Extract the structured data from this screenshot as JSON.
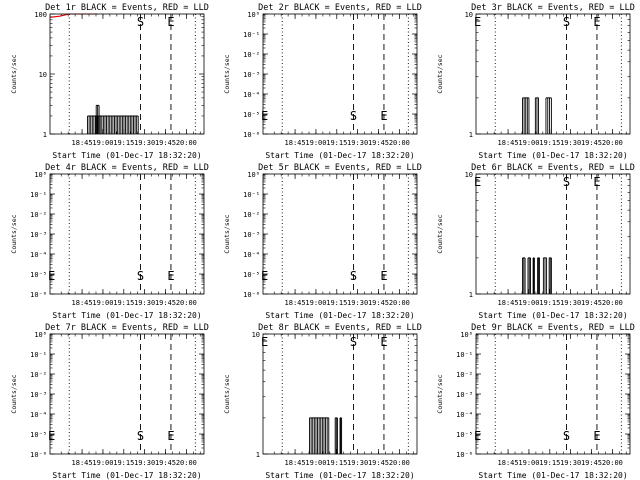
{
  "colors": {
    "events": "#000000",
    "lld": "#dd0000",
    "background": "#ffffff"
  },
  "chart_data": [
    {
      "type": "bar",
      "title": "Det 1r BLACK = Events, RED = LLD",
      "xlabel": "Start Time (01-Dec-17 18:32:20)",
      "ylabel": "Counts/sec",
      "log_y": true,
      "y_ticks": [
        "1",
        "10",
        "100"
      ],
      "y_tick_values": [
        1,
        10,
        100
      ],
      "ylim": [
        1,
        100
      ],
      "x_tick_labels": [
        "18:45",
        "19:00",
        "19:15",
        "19:30",
        "19:45",
        "20:00"
      ],
      "x_tick_values": [
        -0.2,
        0.45,
        1.1,
        1.75,
        2.4,
        3.05
      ],
      "xlim": [
        -1.2,
        3.6
      ],
      "dotted_lines": [
        -0.6,
        3.33
      ],
      "dashed_lines": [
        1.62,
        2.57
      ],
      "markers": [
        {
          "label": "S",
          "x": 1.62
        },
        {
          "label": "E",
          "x": 2.57
        }
      ],
      "events": [
        {
          "x": [
            -0.03,
            1.55
          ],
          "y": 2
        },
        {
          "x": [
            0.24,
            0.33
          ],
          "y": 3
        }
      ],
      "lld_series": [
        {
          "x": -1.2,
          "y": 88
        },
        {
          "x": -0.9,
          "y": 92
        },
        {
          "x": -0.6,
          "y": 100
        },
        {
          "x": -0.3,
          "y": 100
        },
        {
          "x": 0.0,
          "y": 100
        },
        {
          "x": 0.3,
          "y": 100
        }
      ]
    },
    {
      "type": "bar",
      "title": "Det 2r BLACK = Events, RED = LLD",
      "xlabel": "Start Time (01-Dec-17 18:32:20)",
      "ylabel": "Counts/sec",
      "log_y": true,
      "y_ticks": [
        "10⁰",
        "10⁻¹",
        "10⁻²",
        "10⁻³",
        "10⁻⁴",
        "10⁻⁵",
        "10⁻⁶"
      ],
      "y_tick_values": [
        1,
        0.1,
        0.01,
        0.001,
        0.0001,
        1e-05,
        1e-06
      ],
      "ylim": [
        1,
        1e-06
      ],
      "x_tick_labels": [
        "18:45",
        "19:00",
        "19:15",
        "19:30",
        "19:45",
        "20:00"
      ],
      "x_tick_values": [
        -0.2,
        0.45,
        1.1,
        1.75,
        2.4,
        3.05
      ],
      "xlim": [
        -1.2,
        3.6
      ],
      "dotted_lines": [
        -0.6,
        3.33
      ],
      "dashed_lines": [
        1.62,
        2.57
      ],
      "markers": [
        {
          "label": "E",
          "x": -1.15
        },
        {
          "label": "S",
          "x": 1.62
        },
        {
          "label": "E",
          "x": 2.57
        }
      ],
      "events": []
    },
    {
      "type": "bar",
      "title": "Det 3r BLACK = Events, RED = LLD",
      "xlabel": "Start Time (01-Dec-17 18:32:20)",
      "ylabel": "Counts/sec",
      "log_y": true,
      "y_ticks": [
        "1",
        "10"
      ],
      "y_tick_values": [
        1,
        10
      ],
      "ylim": [
        1,
        10
      ],
      "x_tick_labels": [
        "18:45",
        "19:00",
        "19:15",
        "19:30",
        "19:45",
        "20:00"
      ],
      "x_tick_values": [
        -0.2,
        0.45,
        1.1,
        1.75,
        2.4,
        3.05
      ],
      "xlim": [
        -1.2,
        3.6
      ],
      "dotted_lines": [
        -0.6,
        3.33
      ],
      "dashed_lines": [
        1.62,
        2.57
      ],
      "markers": [
        {
          "label": "E",
          "x": -1.15
        },
        {
          "label": "S",
          "x": 1.62
        },
        {
          "label": "E",
          "x": 2.57
        }
      ],
      "events": [
        {
          "x": [
            0.25,
            0.45
          ],
          "y": 2
        },
        {
          "x": [
            0.65,
            0.75
          ],
          "y": 2
        },
        {
          "x": [
            0.98,
            1.15
          ],
          "y": 2
        }
      ]
    },
    {
      "type": "bar",
      "title": "Det 4r BLACK = Events, RED = LLD",
      "xlabel": "Start Time (01-Dec-17 18:32:20)",
      "ylabel": "Counts/sec",
      "log_y": true,
      "y_ticks": [
        "10⁰",
        "10⁻¹",
        "10⁻²",
        "10⁻³",
        "10⁻⁴",
        "10⁻⁵",
        "10⁻⁶"
      ],
      "y_tick_values": [
        1,
        0.1,
        0.01,
        0.001,
        0.0001,
        1e-05,
        1e-06
      ],
      "ylim": [
        1,
        1e-06
      ],
      "x_tick_labels": [
        "18:45",
        "19:00",
        "19:15",
        "19:30",
        "19:45",
        "20:00"
      ],
      "x_tick_values": [
        -0.2,
        0.45,
        1.1,
        1.75,
        2.4,
        3.05
      ],
      "xlim": [
        -1.2,
        3.6
      ],
      "dotted_lines": [
        -0.6,
        3.33
      ],
      "dashed_lines": [
        1.62,
        2.57
      ],
      "markers": [
        {
          "label": "E",
          "x": -1.15
        },
        {
          "label": "S",
          "x": 1.62
        },
        {
          "label": "E",
          "x": 2.57
        }
      ],
      "events": []
    },
    {
      "type": "bar",
      "title": "Det 5r BLACK = Events, RED = LLD",
      "xlabel": "Start Time (01-Dec-17 18:32:20)",
      "ylabel": "Counts/sec",
      "log_y": true,
      "y_ticks": [
        "10⁰",
        "10⁻¹",
        "10⁻²",
        "10⁻³",
        "10⁻⁴",
        "10⁻⁵",
        "10⁻⁶"
      ],
      "y_tick_values": [
        1,
        0.1,
        0.01,
        0.001,
        0.0001,
        1e-05,
        1e-06
      ],
      "ylim": [
        1,
        1e-06
      ],
      "x_tick_labels": [
        "18:45",
        "19:00",
        "19:15",
        "19:30",
        "19:45",
        "20:00"
      ],
      "x_tick_values": [
        -0.2,
        0.45,
        1.1,
        1.75,
        2.4,
        3.05
      ],
      "xlim": [
        -1.2,
        3.6
      ],
      "dotted_lines": [
        -0.6,
        3.33
      ],
      "dashed_lines": [
        1.62,
        2.57
      ],
      "markers": [
        {
          "label": "E",
          "x": -1.15
        },
        {
          "label": "S",
          "x": 1.62
        },
        {
          "label": "E",
          "x": 2.57
        }
      ],
      "events": []
    },
    {
      "type": "bar",
      "title": "Det 6r BLACK = Events, RED = LLD",
      "xlabel": "Start Time (01-Dec-17 18:32:20)",
      "ylabel": "Counts/sec",
      "log_y": true,
      "y_ticks": [
        "1",
        "10"
      ],
      "y_tick_values": [
        1,
        10
      ],
      "ylim": [
        1,
        10
      ],
      "x_tick_labels": [
        "18:45",
        "19:00",
        "19:15",
        "19:30",
        "19:45",
        "20:00"
      ],
      "x_tick_values": [
        -0.2,
        0.45,
        1.1,
        1.75,
        2.4,
        3.05
      ],
      "xlim": [
        -1.2,
        3.6
      ],
      "dotted_lines": [
        -0.6,
        3.33
      ],
      "dashed_lines": [
        1.62,
        2.57
      ],
      "markers": [
        {
          "label": "E",
          "x": -1.15
        },
        {
          "label": "S",
          "x": 1.62
        },
        {
          "label": "E",
          "x": 2.57
        }
      ],
      "events": [
        {
          "x": [
            0.25,
            0.33
          ],
          "y": 2
        },
        {
          "x": [
            0.42,
            0.5
          ],
          "y": 2
        },
        {
          "x": [
            0.58,
            0.62
          ],
          "y": 2
        },
        {
          "x": [
            0.72,
            0.78
          ],
          "y": 2
        },
        {
          "x": [
            0.9,
            1.0
          ],
          "y": 2
        },
        {
          "x": [
            1.08,
            1.15
          ],
          "y": 2
        }
      ]
    },
    {
      "type": "bar",
      "title": "Det 7r BLACK = Events, RED = LLD",
      "xlabel": "Start Time (01-Dec-17 18:32:20)",
      "ylabel": "Counts/sec",
      "log_y": true,
      "y_ticks": [
        "10⁰",
        "10⁻¹",
        "10⁻²",
        "10⁻³",
        "10⁻⁴",
        "10⁻⁵",
        "10⁻⁶"
      ],
      "y_tick_values": [
        1,
        0.1,
        0.01,
        0.001,
        0.0001,
        1e-05,
        1e-06
      ],
      "ylim": [
        1,
        1e-06
      ],
      "x_tick_labels": [
        "18:45",
        "19:00",
        "19:15",
        "19:30",
        "19:45",
        "20:00"
      ],
      "x_tick_values": [
        -0.2,
        0.45,
        1.1,
        1.75,
        2.4,
        3.05
      ],
      "xlim": [
        -1.2,
        3.6
      ],
      "dotted_lines": [
        -0.6,
        3.33
      ],
      "dashed_lines": [
        1.62,
        2.57
      ],
      "markers": [
        {
          "label": "E",
          "x": -1.15
        },
        {
          "label": "S",
          "x": 1.62
        },
        {
          "label": "E",
          "x": 2.57
        }
      ],
      "events": []
    },
    {
      "type": "bar",
      "title": "Det 8r BLACK = Events, RED = LLD",
      "xlabel": "Start Time (01-Dec-17 18:32:20)",
      "ylabel": "Counts/sec",
      "log_y": true,
      "y_ticks": [
        "1",
        "10"
      ],
      "y_tick_values": [
        1,
        10
      ],
      "ylim": [
        1,
        10
      ],
      "x_tick_labels": [
        "18:45",
        "19:00",
        "19:15",
        "19:30",
        "19:45",
        "20:00"
      ],
      "x_tick_values": [
        -0.2,
        0.45,
        1.1,
        1.75,
        2.4,
        3.05
      ],
      "xlim": [
        -1.2,
        3.6
      ],
      "dotted_lines": [
        -0.6,
        3.33
      ],
      "dashed_lines": [
        1.62,
        2.57
      ],
      "markers": [
        {
          "label": "E",
          "x": -1.15
        },
        {
          "label": "S",
          "x": 1.62
        },
        {
          "label": "E",
          "x": 2.57
        }
      ],
      "events": [
        {
          "x": [
            0.25,
            0.85
          ],
          "y": 2
        },
        {
          "x": [
            1.05,
            1.12
          ],
          "y": 2
        },
        {
          "x": [
            1.2,
            1.25
          ],
          "y": 2
        }
      ]
    },
    {
      "type": "bar",
      "title": "Det 9r BLACK = Events, RED = LLD",
      "xlabel": "Start Time (01-Dec-17 18:32:20)",
      "ylabel": "Counts/sec",
      "log_y": true,
      "y_ticks": [
        "10⁰",
        "10⁻¹",
        "10⁻²",
        "10⁻³",
        "10⁻⁴",
        "10⁻⁵",
        "10⁻⁶"
      ],
      "y_tick_values": [
        1,
        0.1,
        0.01,
        0.001,
        0.0001,
        1e-05,
        1e-06
      ],
      "ylim": [
        1,
        1e-06
      ],
      "x_tick_labels": [
        "18:45",
        "19:00",
        "19:15",
        "19:30",
        "19:45",
        "20:00"
      ],
      "x_tick_values": [
        -0.2,
        0.45,
        1.1,
        1.75,
        2.4,
        3.05
      ],
      "xlim": [
        -1.2,
        3.6
      ],
      "dotted_lines": [
        -0.6,
        3.33
      ],
      "dashed_lines": [
        1.62,
        2.57
      ],
      "markers": [
        {
          "label": "E",
          "x": -1.15
        },
        {
          "label": "S",
          "x": 1.62
        },
        {
          "label": "E",
          "x": 2.57
        }
      ],
      "events": []
    }
  ]
}
